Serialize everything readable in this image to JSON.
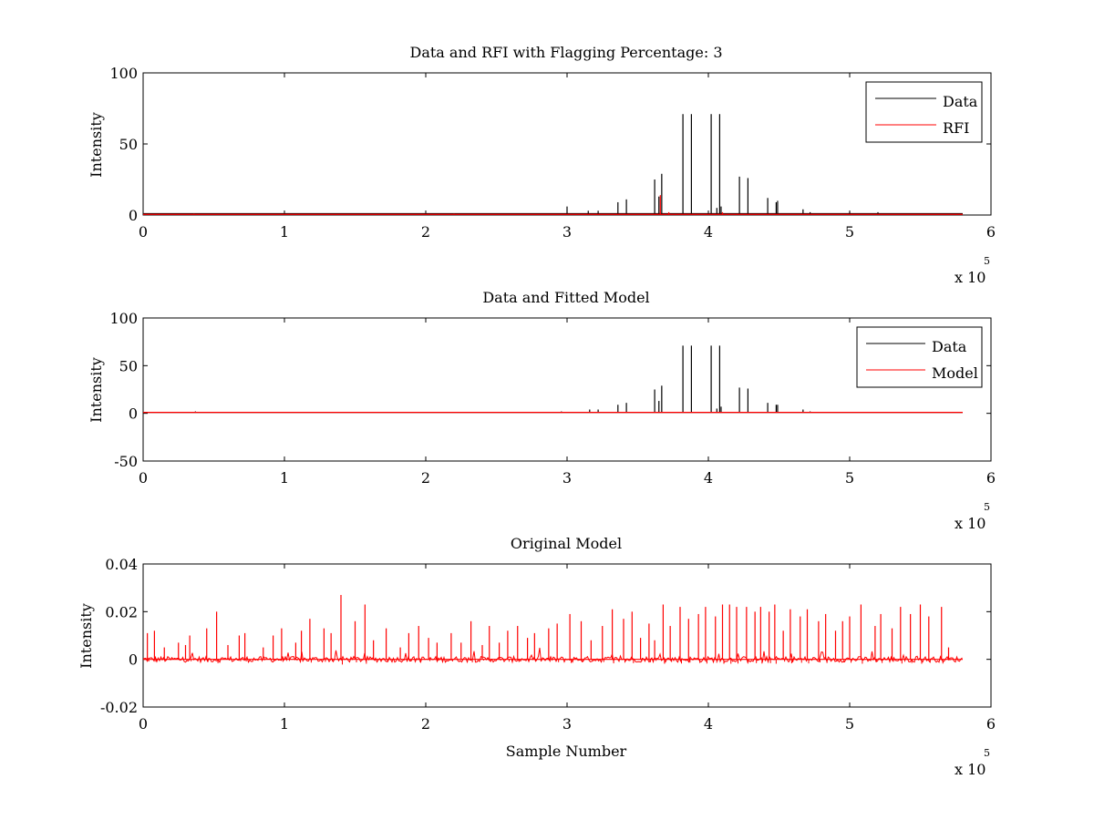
{
  "figure": {
    "background": "#ffffff",
    "colors": {
      "data": "#000000",
      "rfi": "#ff0000",
      "model": "#ff0000"
    }
  },
  "chart_data": [
    {
      "type": "line",
      "title": "Data and RFI with Flagging Percentage: 3",
      "xlabel": "",
      "ylabel": "Intensity",
      "xlim": [
        0,
        600000
      ],
      "ylim": [
        0,
        100
      ],
      "x_ticks": [
        0,
        1,
        2,
        3,
        4,
        5,
        6
      ],
      "y_ticks": [
        0,
        50,
        100
      ],
      "x_exponent_base": "x 10",
      "x_exponent_power": "5",
      "legend": {
        "placement": "top-right",
        "entries": [
          "Data",
          "RFI"
        ]
      },
      "series": [
        {
          "name": "Data",
          "color": "#000000",
          "baseline": 1,
          "spikes": [
            [
              3000,
              1
            ],
            [
              10000,
              1
            ],
            [
              50000,
              1
            ],
            [
              100000,
              1
            ],
            [
              150000,
              1
            ],
            [
              210000,
              1
            ],
            [
              250000,
              1
            ],
            [
              297000,
              1
            ],
            [
              300000,
              6
            ],
            [
              315000,
              3
            ],
            [
              322000,
              3
            ],
            [
              336000,
              9
            ],
            [
              342000,
              11
            ],
            [
              362000,
              25
            ],
            [
              365000,
              13
            ],
            [
              367000,
              29
            ],
            [
              382000,
              71
            ],
            [
              388000,
              71
            ],
            [
              402000,
              71
            ],
            [
              406000,
              5
            ],
            [
              408000,
              71
            ],
            [
              409000,
              6
            ],
            [
              422000,
              27
            ],
            [
              428000,
              26
            ],
            [
              442000,
              12
            ],
            [
              448000,
              9
            ],
            [
              449000,
              10
            ],
            [
              467000,
              4
            ],
            [
              472000,
              2
            ],
            [
              500000,
              2
            ],
            [
              520000,
              2
            ],
            [
              550000,
              1
            ],
            [
              570000,
              1
            ]
          ],
          "end_x": 580000
        },
        {
          "name": "RFI",
          "color": "#ff0000",
          "baseline": 0.5,
          "spikes": [
            [
              36000,
              1
            ],
            [
              220000,
              1
            ],
            [
              366000,
              14
            ],
            [
              372000,
              2
            ],
            [
              410000,
              2
            ]
          ],
          "end_x": 580000
        }
      ]
    },
    {
      "type": "line",
      "title": "Data and Fitted Model",
      "xlabel": "",
      "ylabel": "Intensity",
      "xlim": [
        0,
        600000
      ],
      "ylim": [
        -50,
        100
      ],
      "x_ticks": [
        0,
        1,
        2,
        3,
        4,
        5,
        6
      ],
      "y_ticks": [
        -50,
        0,
        50,
        100
      ],
      "x_exponent_base": "x 10",
      "x_exponent_power": "5",
      "legend": {
        "placement": "top-right",
        "entries": [
          "Data",
          "Model"
        ]
      },
      "series": [
        {
          "name": "Data",
          "color": "#000000",
          "baseline": 1,
          "spikes": [
            [
              37000,
              2
            ],
            [
              296000,
              2
            ],
            [
              316000,
              4
            ],
            [
              322000,
              4
            ],
            [
              336000,
              9
            ],
            [
              342000,
              11
            ],
            [
              362000,
              25
            ],
            [
              365000,
              13
            ],
            [
              367000,
              29
            ],
            [
              382000,
              71
            ],
            [
              388000,
              71
            ],
            [
              402000,
              71
            ],
            [
              406000,
              5
            ],
            [
              408000,
              71
            ],
            [
              409000,
              7
            ],
            [
              422000,
              27
            ],
            [
              428000,
              26
            ],
            [
              442000,
              11
            ],
            [
              448000,
              9
            ],
            [
              449000,
              9
            ],
            [
              467000,
              4
            ],
            [
              472000,
              2
            ]
          ],
          "end_x": 580000
        },
        {
          "name": "Model",
          "color": "#ff0000",
          "baseline": 1,
          "spikes": [],
          "end_x": 580000
        }
      ]
    },
    {
      "type": "line",
      "title": "Original Model",
      "xlabel": "Sample Number",
      "ylabel": "Intensity",
      "xlim": [
        0,
        600000
      ],
      "ylim": [
        -0.02,
        0.04
      ],
      "x_ticks": [
        0,
        1,
        2,
        3,
        4,
        5,
        6
      ],
      "y_ticks": [
        "-0.02",
        "0",
        "0.02",
        "0.04"
      ],
      "y_tick_values": [
        -0.02,
        0,
        0.02,
        0.04
      ],
      "x_exponent_base": "x 10",
      "x_exponent_power": "5",
      "legend": null,
      "series": [
        {
          "name": "",
          "color": "#ff0000",
          "baseline": 0,
          "noise_amplitude": 0.0012,
          "spikes": [
            [
              3000,
              0.011
            ],
            [
              8000,
              0.012
            ],
            [
              15000,
              0.005
            ],
            [
              25000,
              0.007
            ],
            [
              30000,
              0.006
            ],
            [
              33000,
              0.01
            ],
            [
              45000,
              0.013
            ],
            [
              52000,
              0.02
            ],
            [
              60000,
              0.006
            ],
            [
              68000,
              0.01
            ],
            [
              72000,
              0.011
            ],
            [
              85000,
              0.005
            ],
            [
              92000,
              0.01
            ],
            [
              98000,
              0.013
            ],
            [
              108000,
              0.007
            ],
            [
              112000,
              0.012
            ],
            [
              118000,
              0.017
            ],
            [
              128000,
              0.013
            ],
            [
              133000,
              0.011
            ],
            [
              140000,
              0.027
            ],
            [
              150000,
              0.016
            ],
            [
              157000,
              0.023
            ],
            [
              163000,
              0.008
            ],
            [
              172000,
              0.013
            ],
            [
              182000,
              0.005
            ],
            [
              188000,
              0.011
            ],
            [
              195000,
              0.014
            ],
            [
              202000,
              0.009
            ],
            [
              208000,
              0.007
            ],
            [
              218000,
              0.011
            ],
            [
              225000,
              0.007
            ],
            [
              232000,
              0.016
            ],
            [
              240000,
              0.006
            ],
            [
              245000,
              0.014
            ],
            [
              252000,
              0.007
            ],
            [
              258000,
              0.012
            ],
            [
              265000,
              0.014
            ],
            [
              272000,
              0.009
            ],
            [
              277000,
              0.011
            ],
            [
              287000,
              0.013
            ],
            [
              293000,
              0.015
            ],
            [
              302000,
              0.019
            ],
            [
              310000,
              0.016
            ],
            [
              317000,
              0.008
            ],
            [
              325000,
              0.014
            ],
            [
              332000,
              0.021
            ],
            [
              340000,
              0.017
            ],
            [
              346000,
              0.02
            ],
            [
              352000,
              0.009
            ],
            [
              358000,
              0.015
            ],
            [
              362000,
              0.008
            ],
            [
              368000,
              0.023
            ],
            [
              373000,
              0.014
            ],
            [
              380000,
              0.022
            ],
            [
              386000,
              0.017
            ],
            [
              393000,
              0.019
            ],
            [
              398000,
              0.022
            ],
            [
              405000,
              0.018
            ],
            [
              410000,
              0.023
            ],
            [
              415000,
              0.023
            ],
            [
              420000,
              0.022
            ],
            [
              427000,
              0.022
            ],
            [
              433000,
              0.02
            ],
            [
              437000,
              0.022
            ],
            [
              443000,
              0.02
            ],
            [
              447000,
              0.023
            ],
            [
              453000,
              0.012
            ],
            [
              458000,
              0.021
            ],
            [
              465000,
              0.018
            ],
            [
              470000,
              0.021
            ],
            [
              478000,
              0.016
            ],
            [
              483000,
              0.019
            ],
            [
              490000,
              0.012
            ],
            [
              495000,
              0.016
            ],
            [
              500000,
              0.018
            ],
            [
              508000,
              0.023
            ],
            [
              518000,
              0.014
            ],
            [
              522000,
              0.019
            ],
            [
              530000,
              0.013
            ],
            [
              536000,
              0.022
            ],
            [
              543000,
              0.019
            ],
            [
              550000,
              0.023
            ],
            [
              556000,
              0.018
            ],
            [
              565000,
              0.022
            ],
            [
              570000,
              0.005
            ]
          ],
          "end_x": 580000
        }
      ]
    }
  ]
}
